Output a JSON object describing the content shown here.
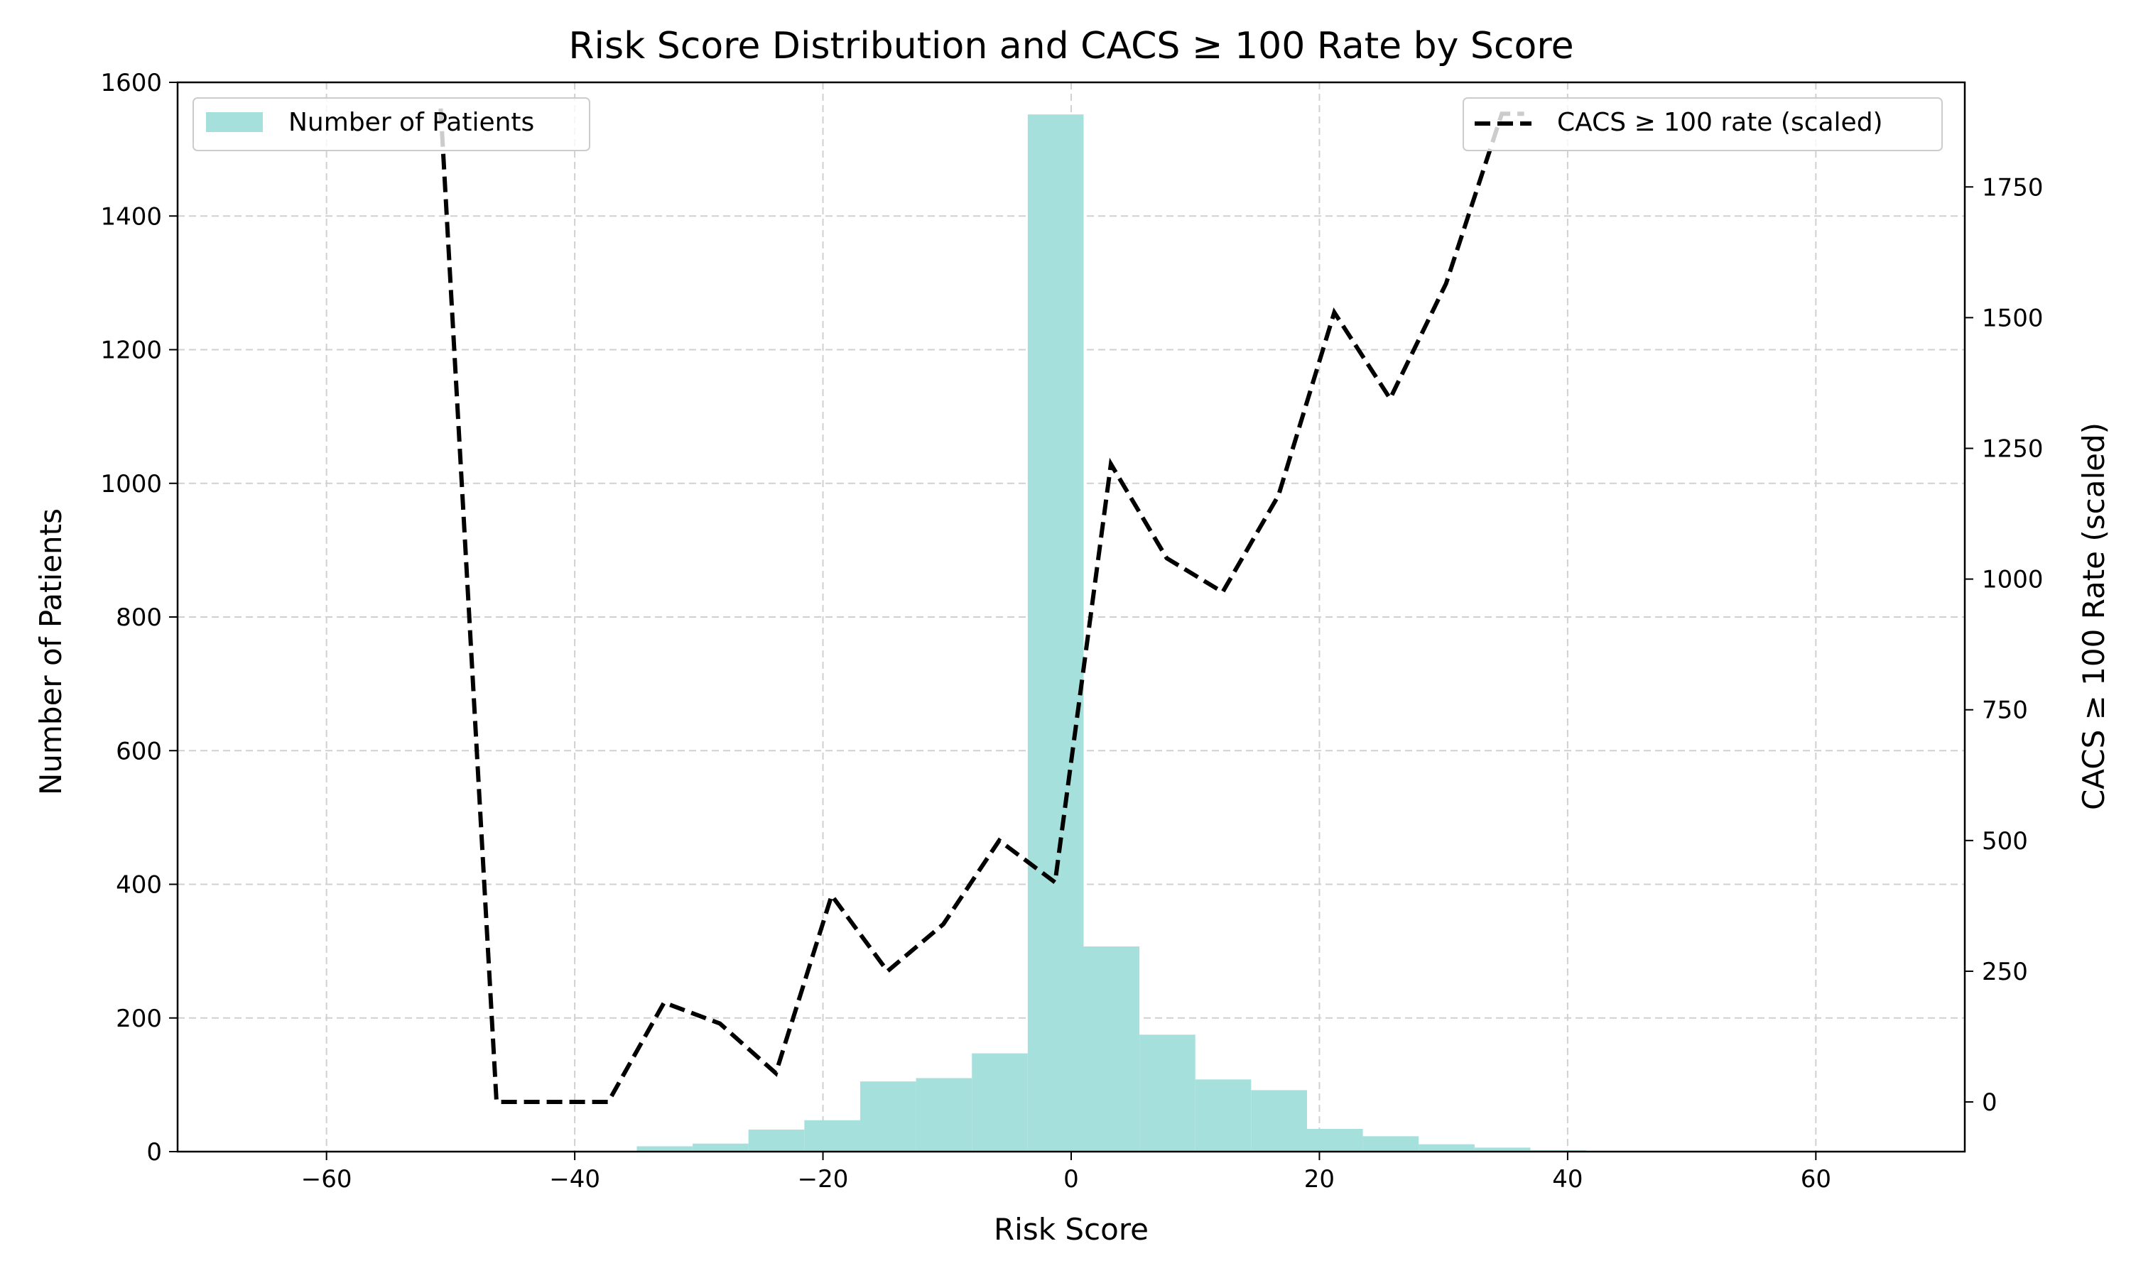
{
  "chart_data": {
    "type": "bar",
    "title": "Risk Score Distribution and CACS ≥ 100 Rate by Score",
    "xlabel": "Risk Score",
    "ylabel": "Number of Patients",
    "y2label": "CACS ≥ 100 Rate (scaled)",
    "xlim": [
      -72,
      72
    ],
    "ylim": [
      0,
      1600
    ],
    "y2lim": [
      -95,
      1950
    ],
    "x_ticks": [
      -60,
      -40,
      -20,
      0,
      20,
      40,
      60
    ],
    "x_tick_labels": [
      "−60",
      "−40",
      "−20",
      "0",
      "20",
      "40",
      "60"
    ],
    "y_ticks": [
      0,
      200,
      400,
      600,
      800,
      1000,
      1200,
      1400,
      1600
    ],
    "y_tick_labels": [
      "0",
      "200",
      "400",
      "600",
      "800",
      "1000",
      "1200",
      "1400",
      "1600"
    ],
    "y2_ticks": [
      0,
      250,
      500,
      750,
      1000,
      1250,
      1500,
      1750
    ],
    "y2_tick_labels": [
      "0",
      "250",
      "500",
      "750",
      "1000",
      "1250",
      "1500",
      "1750"
    ],
    "grid": true,
    "legend_left": {
      "label": "Number of Patients",
      "placement": "upper-left"
    },
    "legend_right": {
      "label": "CACS ≥ 100 rate (scaled)",
      "placement": "upper-right"
    },
    "series": [
      {
        "name": "Number of Patients",
        "kind": "histogram",
        "color": "#a6e0dc",
        "bins": [
          {
            "x0": -35.0,
            "x1": -30.5,
            "value": 8
          },
          {
            "x0": -30.5,
            "x1": -26.0,
            "value": 12
          },
          {
            "x0": -26.0,
            "x1": -21.5,
            "value": 33
          },
          {
            "x0": -21.5,
            "x1": -17.0,
            "value": 47
          },
          {
            "x0": -17.0,
            "x1": -12.5,
            "value": 105
          },
          {
            "x0": -12.5,
            "x1": -8.0,
            "value": 110
          },
          {
            "x0": -8.0,
            "x1": -3.5,
            "value": 147
          },
          {
            "x0": -3.5,
            "x1": 1.0,
            "value": 1552
          },
          {
            "x0": 1.0,
            "x1": 5.5,
            "value": 307
          },
          {
            "x0": 5.5,
            "x1": 10.0,
            "value": 175
          },
          {
            "x0": 10.0,
            "x1": 14.5,
            "value": 108
          },
          {
            "x0": 14.5,
            "x1": 19.0,
            "value": 92
          },
          {
            "x0": 19.0,
            "x1": 23.5,
            "value": 34
          },
          {
            "x0": 23.5,
            "x1": 28.0,
            "value": 23
          },
          {
            "x0": 28.0,
            "x1": 32.5,
            "value": 11
          },
          {
            "x0": 32.5,
            "x1": 37.0,
            "value": 6
          },
          {
            "x0": 37.0,
            "x1": 41.5,
            "value": 2
          }
        ]
      },
      {
        "name": "CACS ≥ 100 rate (scaled)",
        "kind": "line",
        "axis": "right",
        "color": "#000000",
        "style": "dashed",
        "x": [
          -50.8,
          -46.3,
          -41.8,
          -37.3,
          -32.8,
          -28.3,
          -23.8,
          -19.3,
          -14.8,
          -10.3,
          -5.8,
          -1.3,
          3.2,
          7.7,
          12.2,
          16.7,
          21.2,
          25.7,
          30.2,
          34.7,
          36.5
        ],
        "y": [
          1900,
          0,
          0,
          0,
          190,
          150,
          55,
          395,
          250,
          340,
          500,
          420,
          1220,
          1040,
          975,
          1160,
          1510,
          1345,
          1565,
          1890,
          1890
        ]
      }
    ]
  }
}
